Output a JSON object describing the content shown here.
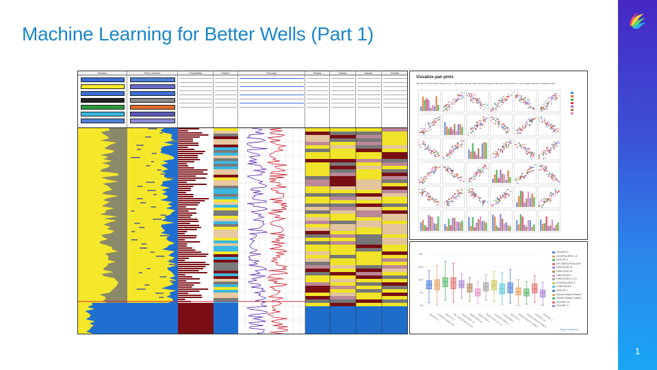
{
  "slide": {
    "title": "Machine Learning for Better Wells (Part 1)",
    "page_number": "1",
    "accent_color": "#1a86c8",
    "sidebar_gradient": [
      "#4628c4",
      "#1aa6f5"
    ],
    "logo_icon": "company-logo-icon"
  },
  "log_panel": {
    "header_columns": [
      "Stratum",
      "Pred_Volume",
      "Probability",
      "Facies",
      "Porosity",
      "Facies",
      "Facies",
      "Facies",
      "Facies"
    ],
    "track_colors": {
      "sand": "#f5e82a",
      "shale": "#7a7a7a",
      "carbonate": "#1f6fd0",
      "coal": "#7a0e14",
      "silt": "#e8c9a0",
      "brine": "#3ab8e0",
      "gr_curve": "#6a3ab8",
      "res_curve": "#d02a3a"
    }
  },
  "pair_plot": {
    "title": "Visualize pair-plots",
    "subtitle": "Set the Show/PairPlot flag to true... pair-plots can be time consuming and memory intensive for a very large number of wells/curves.",
    "series_colors": [
      "#4f7fd8",
      "#e36a2a",
      "#3aa84a",
      "#d8304a",
      "#9a62d0",
      "#a07040",
      "#e07ac0"
    ],
    "grid_size": 6
  },
  "box_plot": {
    "yticks": [
      "150",
      "125",
      "100",
      "75",
      "50"
    ],
    "wells": [
      {
        "name": "ZACARY 5",
        "color": "#4f7fd8",
        "q1": 82,
        "median": 90,
        "q3": 98,
        "min": 55,
        "max": 118
      },
      {
        "name": "LEVERKUSEN 1 B",
        "color": "#e8a060",
        "q1": 80,
        "median": 90,
        "q3": 100,
        "min": 52,
        "max": 128
      },
      {
        "name": "NIOLOS 2",
        "color": "#58b868",
        "q1": 86,
        "median": 96,
        "q3": 104,
        "min": 60,
        "max": 136
      },
      {
        "name": "DE GARZA PAULA 60",
        "color": "#e06a6a",
        "q1": 82,
        "median": 94,
        "q3": 104,
        "min": 56,
        "max": 132
      },
      {
        "name": "HINOJOSA 13",
        "color": "#a882d8",
        "q1": 84,
        "median": 90,
        "q3": 98,
        "min": 64,
        "max": 112
      },
      {
        "name": "HINOJOSA 14",
        "color": "#b08a60",
        "q1": 76,
        "median": 84,
        "q3": 92,
        "min": 58,
        "max": 104
      },
      {
        "name": "HINOJOSA 3",
        "color": "#e890c8",
        "q1": 68,
        "median": 74,
        "q3": 82,
        "min": 54,
        "max": 96
      },
      {
        "name": "HINOJOSA G C 11",
        "color": "#a0a0a0",
        "q1": 78,
        "median": 86,
        "q3": 94,
        "min": 60,
        "max": 110
      },
      {
        "name": "LEVERKUSEN 3",
        "color": "#c8c850",
        "q1": 80,
        "median": 90,
        "q3": 98,
        "min": 58,
        "max": 116
      },
      {
        "name": "LONGORIA 1",
        "color": "#50c8d8",
        "q1": 72,
        "median": 82,
        "q3": 92,
        "min": 52,
        "max": 114
      },
      {
        "name": "NIOLOS 1",
        "color": "#4f7fd8",
        "q1": 74,
        "median": 84,
        "q3": 94,
        "min": 54,
        "max": 120
      },
      {
        "name": "Rancho Blanco State 5",
        "color": "#e8a060",
        "q1": 70,
        "median": 76,
        "q3": 84,
        "min": 50,
        "max": 100
      },
      {
        "name": "Rancho Blanco State 6",
        "color": "#58b868",
        "q1": 68,
        "median": 74,
        "q3": 82,
        "min": 52,
        "max": 96
      },
      {
        "name": "ZACARY 14",
        "color": "#e06a6a",
        "q1": 74,
        "median": 82,
        "q3": 92,
        "min": 56,
        "max": 108
      },
      {
        "name": "ZACARY 3",
        "color": "#a882d8",
        "q1": 66,
        "median": 74,
        "q3": 80,
        "min": 50,
        "max": 94
      }
    ],
    "export_label": "Export to plot.ly »"
  }
}
